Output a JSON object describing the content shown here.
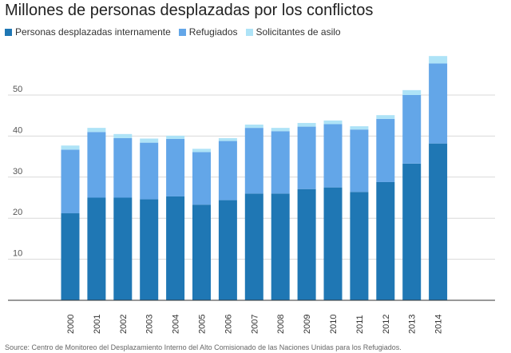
{
  "chart_data": {
    "type": "bar",
    "stacked": true,
    "title": "Millones de personas desplazadas por los conflictos",
    "categories": [
      "2000",
      "2001",
      "2002",
      "2003",
      "2004",
      "2005",
      "2006",
      "2007",
      "2008",
      "2009",
      "2010",
      "2011",
      "2012",
      "2013",
      "2014"
    ],
    "series": [
      {
        "name": "Personas desplazadas internamente",
        "color": "#1f77b4",
        "values": [
          21.2,
          25.0,
          25.0,
          24.6,
          25.3,
          23.3,
          24.4,
          26.0,
          26.0,
          27.1,
          27.5,
          26.4,
          28.8,
          33.3,
          38.2
        ]
      },
      {
        "name": "Refugiados",
        "color": "#63a6e8",
        "values": [
          15.5,
          16.0,
          14.5,
          13.8,
          14.0,
          12.8,
          14.4,
          16.0,
          15.2,
          15.2,
          15.4,
          15.2,
          15.4,
          16.7,
          19.5
        ]
      },
      {
        "name": "Solicitantes de asilo",
        "color": "#aee3f7",
        "values": [
          1.0,
          1.0,
          1.0,
          1.0,
          0.8,
          0.8,
          0.7,
          0.8,
          0.8,
          0.9,
          0.9,
          0.8,
          0.9,
          1.2,
          1.8
        ]
      }
    ],
    "yticks": [
      10,
      20,
      30,
      40,
      50
    ],
    "ylim": [
      0,
      60
    ],
    "grid": true,
    "legend_position": "top-left",
    "source": "Source: Centro de Monitoreo del Desplazamiento Interno del Alto Comisionado de las Naciones Unidas para los Refugiados."
  }
}
